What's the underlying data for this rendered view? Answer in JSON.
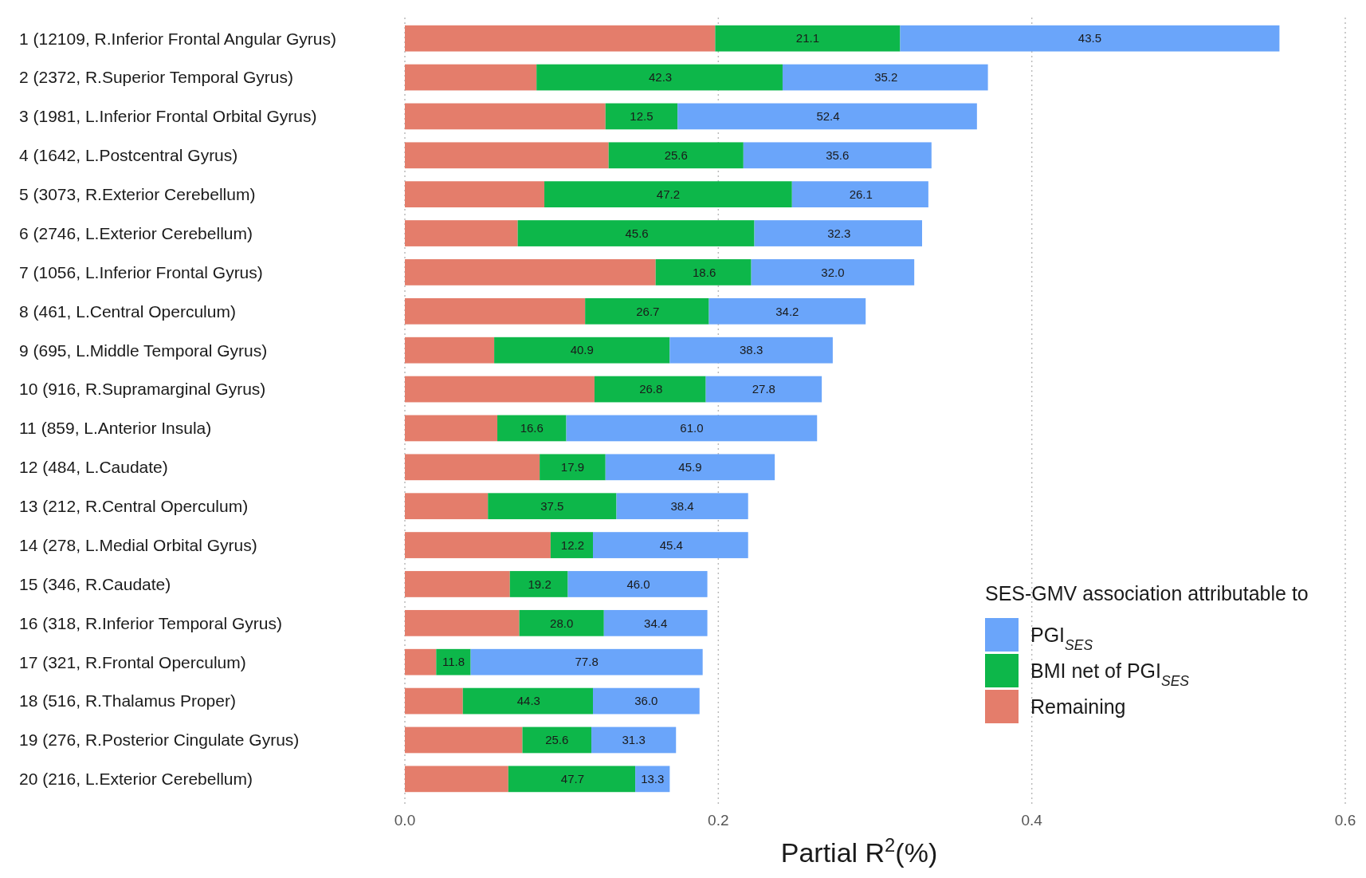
{
  "chart_data": {
    "type": "bar",
    "orientation": "horizontal",
    "stacked": true,
    "categories": [
      "1 (12109, R.Inferior Frontal Angular Gyrus)",
      "2 (2372, R.Superior Temporal Gyrus)",
      "3 (1981, L.Inferior Frontal Orbital Gyrus)",
      "4 (1642, L.Postcentral Gyrus)",
      "5 (3073, R.Exterior Cerebellum)",
      "6 (2746, L.Exterior Cerebellum)",
      "7 (1056, L.Inferior Frontal Gyrus)",
      "8 (461, L.Central Operculum)",
      "9 (695, L.Middle Temporal Gyrus)",
      "10 (916, R.Supramarginal Gyrus)",
      "11 (859, L.Anterior Insula)",
      "12 (484, L.Caudate)",
      "13 (212, R.Central Operculum)",
      "14 (278, L.Medial Orbital Gyrus)",
      "15 (346, R.Caudate)",
      "16 (318, R.Inferior Temporal Gyrus)",
      "17 (321, R.Frontal Operculum)",
      "18 (516, R.Thalamus Proper)",
      "19 (276, R.Posterior Cingulate Gyrus)",
      "20 (216, L.Exterior Cerebellum)"
    ],
    "series": [
      {
        "name": "Remaining",
        "color": "#e47d6b",
        "values": [
          0.198,
          0.084,
          0.128,
          0.13,
          0.089,
          0.072,
          0.16,
          0.115,
          0.057,
          0.121,
          0.059,
          0.086,
          0.053,
          0.093,
          0.067,
          0.073,
          0.02,
          0.037,
          0.075,
          0.066
        ]
      },
      {
        "name": "BMI net of PGI$_{SES}$",
        "color": "#0db74a",
        "values": [
          0.118,
          0.157,
          0.046,
          0.086,
          0.158,
          0.151,
          0.061,
          0.079,
          0.112,
          0.071,
          0.044,
          0.042,
          0.082,
          0.027,
          0.037,
          0.054,
          0.022,
          0.083,
          0.044,
          0.081
        ]
      },
      {
        "name": "PGI$_{SES}$",
        "color": "#6aa5fa",
        "values": [
          0.242,
          0.131,
          0.191,
          0.12,
          0.087,
          0.107,
          0.104,
          0.1,
          0.104,
          0.074,
          0.16,
          0.108,
          0.084,
          0.099,
          0.089,
          0.066,
          0.148,
          0.068,
          0.054,
          0.022
        ]
      }
    ],
    "annotations": [
      {
        "text": "21.1",
        "x": 0.257,
        "y": "1 (12109, R.Inferior Frontal Angular Gyrus)"
      },
      {
        "text": "43.5",
        "x": 0.437,
        "y": "1 (12109, R.Inferior Frontal Angular Gyrus)"
      },
      {
        "text": "42.3",
        "x": 0.163,
        "y": "2 (2372, R.Superior Temporal Gyrus)"
      },
      {
        "text": "35.2",
        "x": 0.307,
        "y": "2 (2372, R.Superior Temporal Gyrus)"
      },
      {
        "text": "12.5",
        "x": 0.151,
        "y": "3 (1981, L.Inferior Frontal Orbital Gyrus)"
      },
      {
        "text": "52.4",
        "x": 0.27,
        "y": "3 (1981, L.Inferior Frontal Orbital Gyrus)"
      },
      {
        "text": "25.6",
        "x": 0.173,
        "y": "4 (1642, L.Postcentral Gyrus)"
      },
      {
        "text": "35.6",
        "x": 0.276,
        "y": "4 (1642, L.Postcentral Gyrus)"
      },
      {
        "text": "47.2",
        "x": 0.168,
        "y": "5 (3073, R.Exterior Cerebellum)"
      },
      {
        "text": "26.1",
        "x": 0.291,
        "y": "5 (3073, R.Exterior Cerebellum)"
      },
      {
        "text": "45.6",
        "x": 0.148,
        "y": "6 (2746, L.Exterior Cerebellum)"
      },
      {
        "text": "32.3",
        "x": 0.277,
        "y": "6 (2746, L.Exterior Cerebellum)"
      },
      {
        "text": "18.6",
        "x": 0.191,
        "y": "7 (1056, L.Inferior Frontal Gyrus)"
      },
      {
        "text": "32.0",
        "x": 0.273,
        "y": "7 (1056, L.Inferior Frontal Gyrus)"
      },
      {
        "text": "26.7",
        "x": 0.155,
        "y": "8 (461, L.Central Operculum)"
      },
      {
        "text": "34.2",
        "x": 0.244,
        "y": "8 (461, L.Central Operculum)"
      },
      {
        "text": "40.9",
        "x": 0.113,
        "y": "9 (695, L.Middle Temporal Gyrus)"
      },
      {
        "text": "38.3",
        "x": 0.221,
        "y": "9 (695, L.Middle Temporal Gyrus)"
      },
      {
        "text": "26.8",
        "x": 0.157,
        "y": "10 (916, R.Supramarginal Gyrus)"
      },
      {
        "text": "27.8",
        "x": 0.229,
        "y": "10 (916, R.Supramarginal Gyrus)"
      },
      {
        "text": "16.6",
        "x": 0.081,
        "y": "11 (859, L.Anterior Insula)"
      },
      {
        "text": "61.0",
        "x": 0.183,
        "y": "11 (859, L.Anterior Insula)"
      },
      {
        "text": "17.9",
        "x": 0.107,
        "y": "12 (484, L.Caudate)"
      },
      {
        "text": "45.9",
        "x": 0.182,
        "y": "12 (484, L.Caudate)"
      },
      {
        "text": "37.5",
        "x": 0.094,
        "y": "13 (212, R.Central Operculum)"
      },
      {
        "text": "38.4",
        "x": 0.177,
        "y": "13 (212, R.Central Operculum)"
      },
      {
        "text": "12.2",
        "x": 0.107,
        "y": "14 (278, L.Medial Orbital Gyrus)"
      },
      {
        "text": "45.4",
        "x": 0.17,
        "y": "14 (278, L.Medial Orbital Gyrus)"
      },
      {
        "text": "19.2",
        "x": 0.086,
        "y": "15 (346, R.Caudate)"
      },
      {
        "text": "46.0",
        "x": 0.149,
        "y": "15 (346, R.Caudate)"
      },
      {
        "text": "28.0",
        "x": 0.1,
        "y": "16 (318, R.Inferior Temporal Gyrus)"
      },
      {
        "text": "34.4",
        "x": 0.16,
        "y": "16 (318, R.Inferior Temporal Gyrus)"
      },
      {
        "text": "11.8",
        "x": 0.031,
        "y": "17 (321, R.Frontal Operculum)"
      },
      {
        "text": "77.8",
        "x": 0.116,
        "y": "17 (321, R.Frontal Operculum)"
      },
      {
        "text": "44.3",
        "x": 0.079,
        "y": "18 (516, R.Thalamus Proper)"
      },
      {
        "text": "36.0",
        "x": 0.154,
        "y": "18 (516, R.Thalamus Proper)"
      },
      {
        "text": "25.6",
        "x": 0.097,
        "y": "19 (276, R.Posterior Cingulate Gyrus)"
      },
      {
        "text": "31.3",
        "x": 0.146,
        "y": "19 (276, R.Posterior Cingulate Gyrus)"
      },
      {
        "text": "47.7",
        "x": 0.107,
        "y": "20 (216, L.Exterior Cerebellum)"
      },
      {
        "text": "13.3",
        "x": 0.158,
        "y": "20 (216, L.Exterior Cerebellum)"
      }
    ],
    "xlim": [
      0,
      0.6
    ],
    "xticks": [
      {
        "value": 0,
        "label": "0.0"
      },
      0.2,
      0.4,
      0.6
    ],
    "xlabel": "Partial R$^{2}$(%)",
    "legend_title": "SES-GMV association attributable to",
    "legend": "bottom right",
    "grid": "x"
  }
}
